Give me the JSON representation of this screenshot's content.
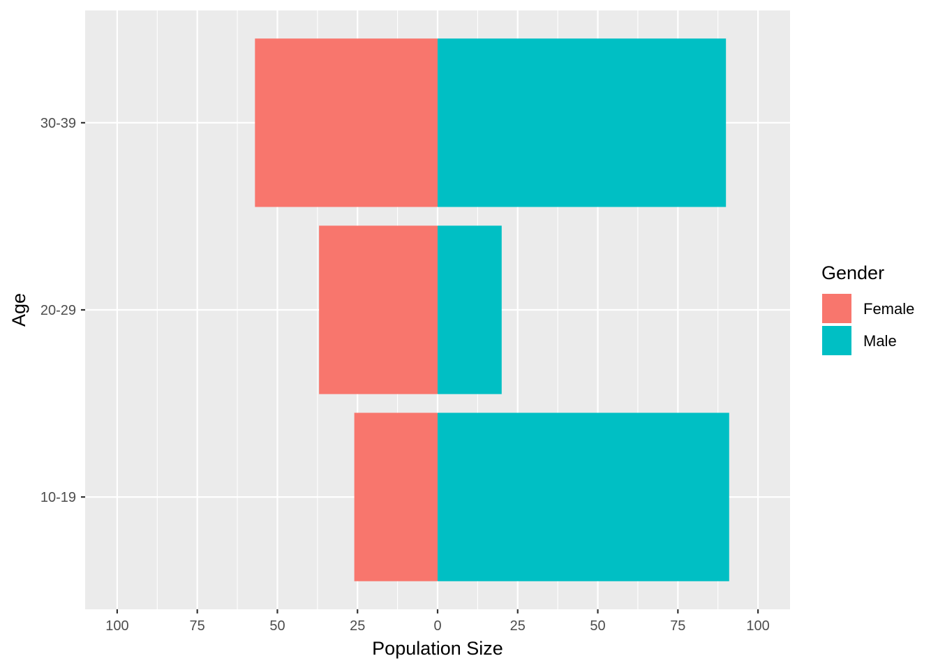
{
  "chart_data": {
    "type": "bar",
    "orientation": "horizontal",
    "layout": "diverging",
    "categories": [
      "10-19",
      "20-29",
      "30-39"
    ],
    "series": [
      {
        "name": "Female",
        "values": [
          -26,
          -37,
          -57
        ],
        "color": "#F8766D"
      },
      {
        "name": "Male",
        "values": [
          91,
          20,
          90
        ],
        "color": "#00BFC4"
      }
    ],
    "xlabel": "Population Size",
    "ylabel": "Age",
    "xlim": [
      -110,
      110
    ],
    "xticks": [
      -100,
      -75,
      -50,
      -25,
      0,
      25,
      50,
      75,
      100
    ],
    "xtick_labels": [
      "100",
      "75",
      "50",
      "25",
      "0",
      "25",
      "50",
      "75",
      "100"
    ],
    "grid": true,
    "panel_color": "#EBEBEB",
    "legend": {
      "title": "Gender",
      "position": "right",
      "entries": [
        {
          "label": "Female",
          "color": "#F8766D"
        },
        {
          "label": "Male",
          "color": "#00BFC4"
        }
      ]
    }
  }
}
